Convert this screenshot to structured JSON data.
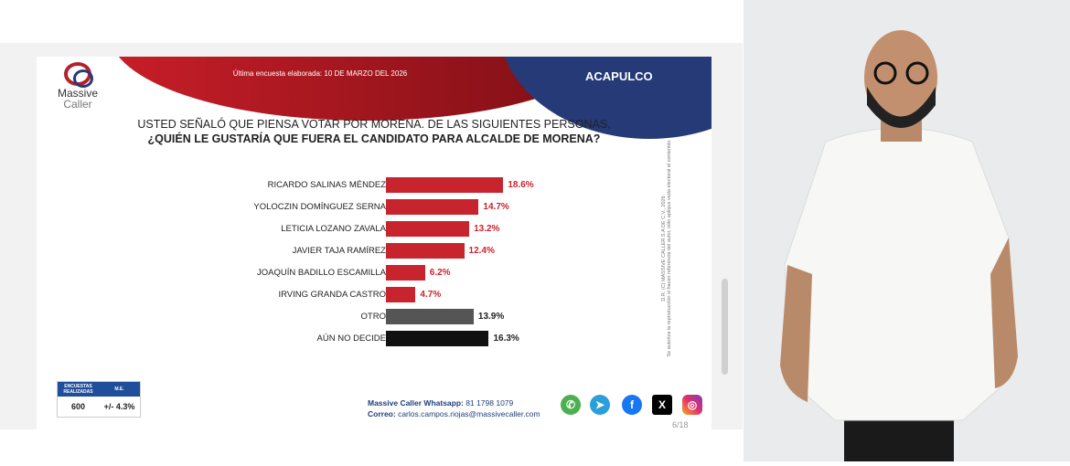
{
  "header": {
    "brand_line1": "Massive",
    "brand_line2": "Caller",
    "date_text": "Última encuesta elaborada: 10 DE MARZO DEL 2026",
    "city": "ACAPULCO"
  },
  "question": {
    "line1": "USTED SEÑALÓ QUE PIENSA VOTAR POR MORENA. DE LAS SIGUIENTES PERSONAS,",
    "line2": "¿QUIÉN LE GUSTARÍA QUE FUERA EL CANDIDATO PARA ALCALDE DE MORENA?"
  },
  "chart_data": {
    "type": "bar",
    "orientation": "horizontal",
    "categories": [
      "RICARDO SALINAS MÉNDEZ",
      "YOLOCZIN DOMÍNGUEZ SERNA",
      "LETICIA LOZANO ZAVALA",
      "JAVIER TAJA RAMÍREZ",
      "JOAQUÍN BADILLO ESCAMILLA",
      "IRVING GRANDA CASTRO",
      "OTRO",
      "AÚN NO DECIDE"
    ],
    "values": [
      18.6,
      14.7,
      13.2,
      12.4,
      6.2,
      4.7,
      13.9,
      16.3
    ],
    "labels": [
      "18.6%",
      "14.7%",
      "13.2%",
      "12.4%",
      "6.2%",
      "4.7%",
      "13.9%",
      "16.3%"
    ],
    "colors": [
      "#c8242e",
      "#c8242e",
      "#c8242e",
      "#c8242e",
      "#c8242e",
      "#c8242e",
      "#555555",
      "#111111"
    ]
  },
  "copyright": "D.R. (C) MASSIVE CALLER S.A DE C.V., 2026",
  "copyright_note": "Se autoriza la reproducción si hacen referencia del autor, sólo aplique veda electoral al contenido",
  "sample_table": {
    "headers": [
      "ENCUESTAS REALIZADAS",
      "M.E."
    ],
    "values": [
      "600",
      "+/- 4.3%"
    ]
  },
  "contact": {
    "whatsapp_label": "Massive Caller Whatsapp:",
    "whatsapp": "81 1798 1079",
    "email_label": "Correo:",
    "email": "carlos.campos.riojas@massivecaller.com"
  },
  "social_icons": [
    "whatsapp-icon",
    "telegram-icon",
    "facebook-icon",
    "x-icon",
    "instagram-icon"
  ],
  "page_indicator": "6/18"
}
